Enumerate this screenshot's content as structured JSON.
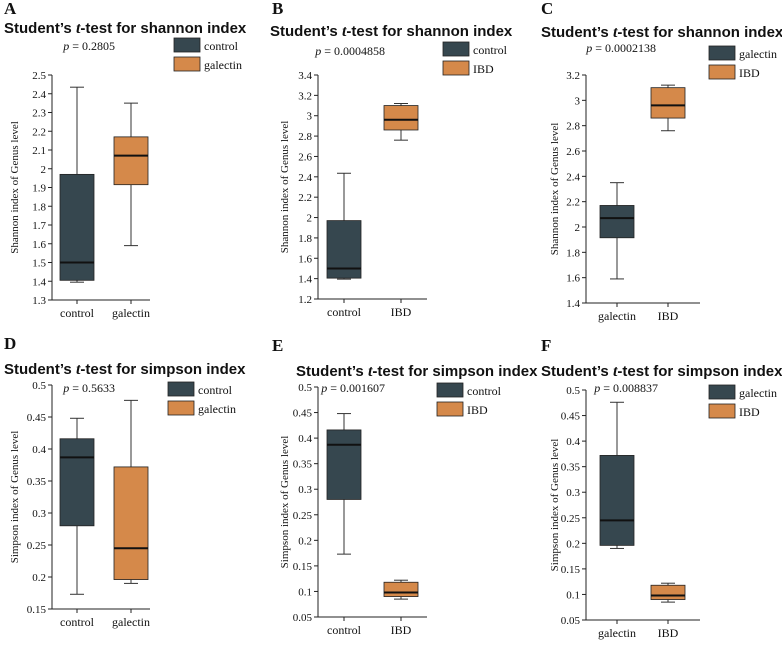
{
  "chart_data": [
    {
      "type": "box",
      "panel": "A",
      "title_pre": "Student’s ",
      "title_t": "t",
      "title_post": "-test for shannon index",
      "pvalue": "0.2805",
      "ylabel": "Shannon index of Genus level",
      "ylim": [
        1.3,
        2.5
      ],
      "ticks": [
        1.3,
        1.4,
        1.5,
        1.6,
        1.7,
        1.8,
        1.9,
        2,
        2.1,
        2.2,
        2.3,
        2.4,
        2.5
      ],
      "groups": [
        {
          "name": "control",
          "color": "#36474f",
          "min": 1.395,
          "q1": 1.405,
          "median": 1.5,
          "q3": 1.97,
          "max": 2.435
        },
        {
          "name": "galectin",
          "color": "#d5894a",
          "min": 1.59,
          "q1": 1.915,
          "median": 2.07,
          "q3": 2.17,
          "max": 2.35
        }
      ]
    },
    {
      "type": "box",
      "panel": "B",
      "title_pre": "Student’s ",
      "title_t": "t",
      "title_post": "-test for shannon index",
      "pvalue": "0.0004858",
      "ylabel": "Shannon index of Genus level",
      "ylim": [
        1.2,
        3.4
      ],
      "ticks": [
        1.2,
        1.4,
        1.6,
        1.8,
        2,
        2.2,
        2.4,
        2.6,
        2.8,
        3,
        3.2,
        3.4
      ],
      "groups": [
        {
          "name": "control",
          "color": "#36474f",
          "min": 1.395,
          "q1": 1.405,
          "median": 1.5,
          "q3": 1.97,
          "max": 2.435
        },
        {
          "name": "IBD",
          "color": "#d5894a",
          "min": 2.76,
          "q1": 2.86,
          "median": 2.96,
          "q3": 3.1,
          "max": 3.12
        }
      ]
    },
    {
      "type": "box",
      "panel": "C",
      "title_pre": "Student’s ",
      "title_t": "t",
      "title_post": "-test for shannon index",
      "pvalue": "0.0002138",
      "ylabel": "Shannon index of Genus level",
      "ylim": [
        1.4,
        3.2
      ],
      "ticks": [
        1.4,
        1.6,
        1.8,
        2,
        2.2,
        2.4,
        2.6,
        2.8,
        3,
        3.2
      ],
      "groups": [
        {
          "name": "galectin",
          "color": "#36474f",
          "min": 1.59,
          "q1": 1.915,
          "median": 2.07,
          "q3": 2.17,
          "max": 2.35
        },
        {
          "name": "IBD",
          "color": "#d5894a",
          "min": 2.76,
          "q1": 2.86,
          "median": 2.96,
          "q3": 3.1,
          "max": 3.12
        }
      ]
    },
    {
      "type": "box",
      "panel": "D",
      "title_pre": "Student’s ",
      "title_t": "t",
      "title_post": "-test for simpson index",
      "pvalue": "0.5633",
      "ylabel": "Simpson index of Genus level",
      "ylim": [
        0.15,
        0.5
      ],
      "ticks": [
        0.15,
        0.2,
        0.25,
        0.3,
        0.35,
        0.4,
        0.45,
        0.5
      ],
      "groups": [
        {
          "name": "control",
          "color": "#36474f",
          "min": 0.173,
          "q1": 0.28,
          "median": 0.387,
          "q3": 0.416,
          "max": 0.448
        },
        {
          "name": "galectin",
          "color": "#d5894a",
          "min": 0.19,
          "q1": 0.196,
          "median": 0.245,
          "q3": 0.372,
          "max": 0.476
        }
      ]
    },
    {
      "type": "box",
      "panel": "E",
      "title_pre": "Student’s ",
      "title_t": "t",
      "title_post": "-test for simpson index",
      "pvalue": "0.001607",
      "ylabel": "Simpson index of Genus level",
      "ylim": [
        0.05,
        0.5
      ],
      "ticks": [
        0.05,
        0.1,
        0.15,
        0.2,
        0.25,
        0.3,
        0.35,
        0.4,
        0.45,
        0.5
      ],
      "groups": [
        {
          "name": "control",
          "color": "#36474f",
          "min": 0.173,
          "q1": 0.28,
          "median": 0.387,
          "q3": 0.416,
          "max": 0.448
        },
        {
          "name": "IBD",
          "color": "#d5894a",
          "min": 0.085,
          "q1": 0.09,
          "median": 0.098,
          "q3": 0.118,
          "max": 0.122
        }
      ]
    },
    {
      "type": "box",
      "panel": "F",
      "title_pre": "Student’s ",
      "title_t": "t",
      "title_post": "-test for simpson index",
      "pvalue": "0.008837",
      "ylabel": "Simpson index of Genus level",
      "ylim": [
        0.05,
        0.5
      ],
      "ticks": [
        0.05,
        0.1,
        0.15,
        0.2,
        0.25,
        0.3,
        0.35,
        0.4,
        0.45,
        0.5
      ],
      "groups": [
        {
          "name": "galectin",
          "color": "#36474f",
          "min": 0.19,
          "q1": 0.196,
          "median": 0.245,
          "q3": 0.372,
          "max": 0.476
        },
        {
          "name": "IBD",
          "color": "#d5894a",
          "min": 0.085,
          "q1": 0.09,
          "median": 0.098,
          "q3": 0.118,
          "max": 0.122
        }
      ]
    }
  ]
}
